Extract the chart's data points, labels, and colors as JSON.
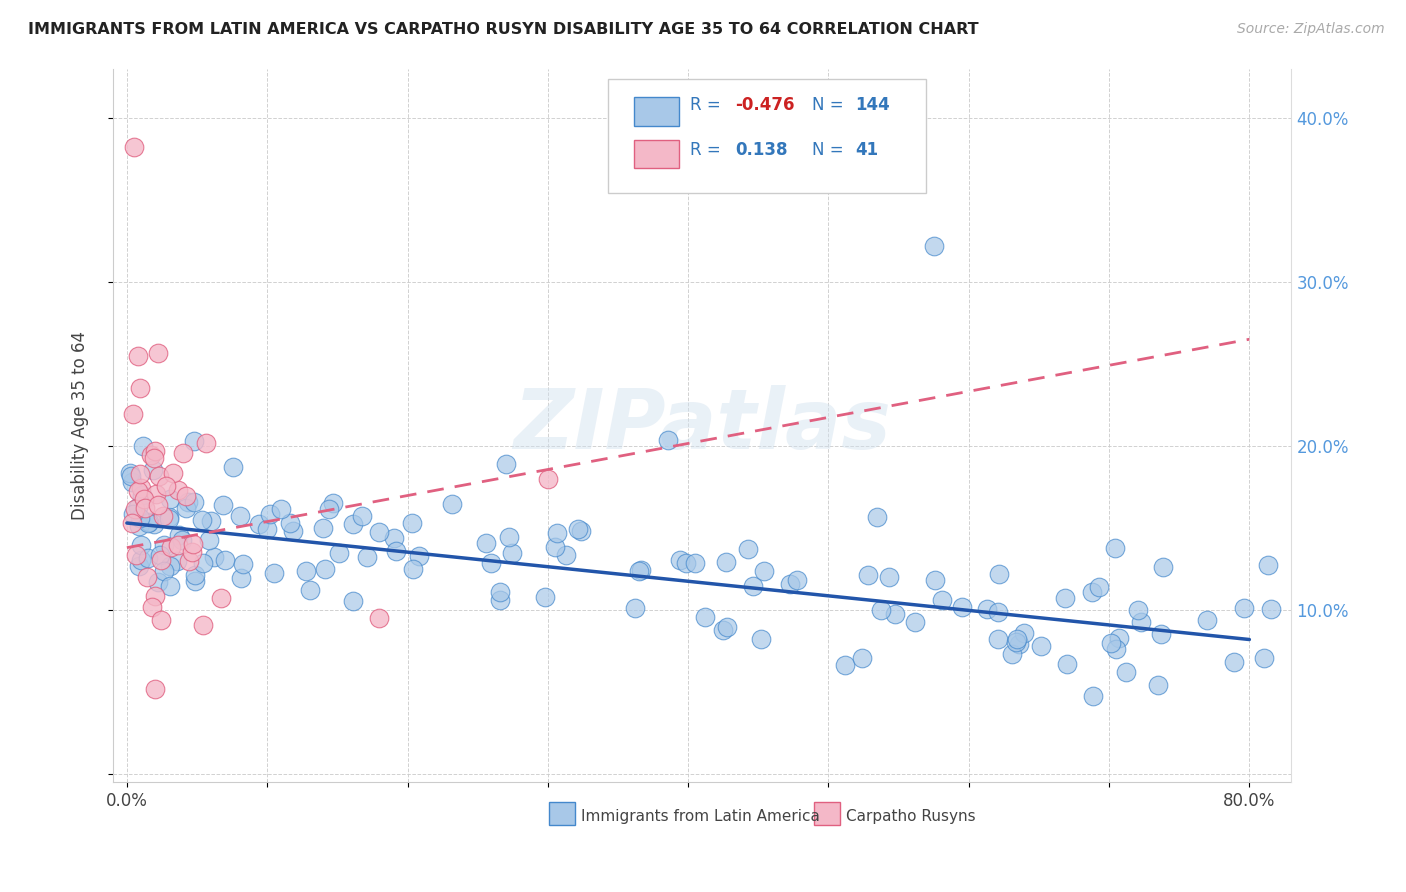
{
  "title": "IMMIGRANTS FROM LATIN AMERICA VS CARPATHO RUSYN DISABILITY AGE 35 TO 64 CORRELATION CHART",
  "source": "Source: ZipAtlas.com",
  "ylabel": "Disability Age 35 to 64",
  "xlim": [
    -0.01,
    0.83
  ],
  "ylim": [
    -0.005,
    0.43
  ],
  "blue_R": "-0.476",
  "blue_N": "144",
  "pink_R": "0.138",
  "pink_N": "41",
  "blue_color": "#a8c8e8",
  "blue_edge_color": "#4488cc",
  "blue_line_color": "#2255aa",
  "pink_color": "#f4b8c8",
  "pink_edge_color": "#e06080",
  "pink_line_color": "#e06080",
  "watermark": "ZIPatlas",
  "blue_trend_x": [
    0.0,
    0.8
  ],
  "blue_trend_y": [
    0.153,
    0.082
  ],
  "pink_trend_x": [
    0.0,
    0.8
  ],
  "pink_trend_y": [
    0.138,
    0.265
  ]
}
